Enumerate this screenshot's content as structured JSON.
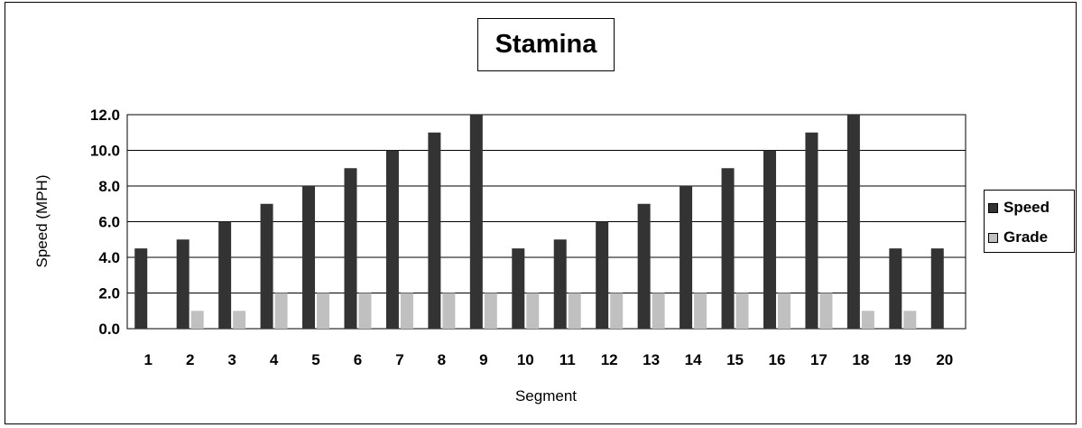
{
  "chart_data": {
    "type": "bar",
    "title": "Stamina",
    "xlabel": "Segment",
    "ylabel": "Speed (MPH)",
    "ylim": [
      0,
      12
    ],
    "yticks": [
      "0.0",
      "2.0",
      "4.0",
      "6.0",
      "8.0",
      "10.0",
      "12.0"
    ],
    "grid": true,
    "legend_position": "right",
    "categories": [
      "1",
      "2",
      "3",
      "4",
      "5",
      "6",
      "7",
      "8",
      "9",
      "10",
      "11",
      "12",
      "13",
      "14",
      "15",
      "16",
      "17",
      "18",
      "19",
      "20"
    ],
    "series": [
      {
        "name": "Speed",
        "color": "#333333",
        "values": [
          4.5,
          5,
          6,
          7,
          8,
          9,
          10,
          11,
          12,
          4.5,
          5,
          6,
          7,
          8,
          9,
          10,
          11,
          12,
          4.5,
          4.5
        ]
      },
      {
        "name": "Grade",
        "color": "#c0c0c0",
        "values": [
          0,
          1,
          1,
          2,
          2,
          2,
          2,
          2,
          2,
          2,
          2,
          2,
          2,
          2,
          2,
          2,
          2,
          1,
          1,
          0
        ]
      }
    ]
  }
}
